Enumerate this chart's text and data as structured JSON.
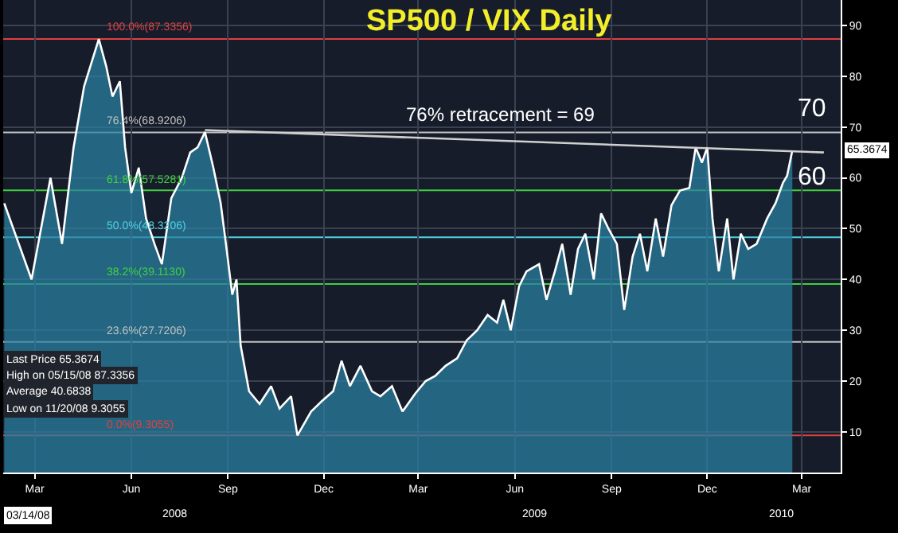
{
  "chart_data": {
    "type": "area",
    "title": "SP500 / VIX Daily",
    "x": [
      "2008-02-15",
      "2008-03-12",
      "2008-03-30",
      "2008-04-10",
      "2008-04-21",
      "2008-05-01",
      "2008-05-10",
      "2008-05-15",
      "2008-05-22",
      "2008-05-28",
      "2008-06-04",
      "2008-06-09",
      "2008-06-15",
      "2008-06-22",
      "2008-06-29",
      "2008-07-07",
      "2008-07-14",
      "2008-07-23",
      "2008-08-02",
      "2008-08-10",
      "2008-08-17",
      "2008-08-24",
      "2008-09-01",
      "2008-09-08",
      "2008-09-13",
      "2008-09-19",
      "2008-09-23",
      "2008-09-27",
      "2008-10-05",
      "2008-10-15",
      "2008-10-26",
      "2008-11-03",
      "2008-11-14",
      "2008-11-20",
      "2008-12-03",
      "2008-12-13",
      "2008-12-24",
      "2009-01-01",
      "2009-01-09",
      "2009-01-19",
      "2009-01-30",
      "2009-02-07",
      "2009-02-18",
      "2009-02-28",
      "2009-03-12",
      "2009-03-22",
      "2009-03-31",
      "2009-04-10",
      "2009-04-21",
      "2009-04-30",
      "2009-05-10",
      "2009-05-20",
      "2009-05-29",
      "2009-06-04",
      "2009-06-11",
      "2009-06-19",
      "2009-06-26",
      "2009-07-08",
      "2009-07-15",
      "2009-07-23",
      "2009-07-30",
      "2009-08-07",
      "2009-08-14",
      "2009-08-21",
      "2009-08-29",
      "2009-09-05",
      "2009-09-12",
      "2009-09-20",
      "2009-09-27",
      "2009-10-05",
      "2009-10-12",
      "2009-10-19",
      "2009-10-27",
      "2009-11-03",
      "2009-11-11",
      "2009-11-19",
      "2009-11-28",
      "2009-12-04",
      "2009-12-10",
      "2009-12-15",
      "2009-12-20",
      "2009-12-26",
      "2010-01-03",
      "2010-01-09",
      "2010-01-16",
      "2010-01-23",
      "2010-01-31",
      "2010-02-10",
      "2010-02-18",
      "2010-02-25",
      "2010-03-01",
      "2010-03-06"
    ],
    "series": [
      {
        "color": "#2a7fa0",
        "values": [
          55,
          40,
          60,
          47,
          66,
          78,
          84,
          87.3,
          82,
          76,
          79,
          66,
          57,
          62,
          52,
          47,
          43,
          56,
          60,
          65,
          66,
          69,
          62,
          55,
          47,
          37,
          40,
          27,
          18,
          15.5,
          19,
          14.6,
          17,
          9.3,
          14,
          16,
          18,
          24,
          19,
          23,
          18,
          17,
          19,
          14,
          17.5,
          20,
          21,
          23,
          24.5,
          28,
          30,
          33,
          31.5,
          36,
          30,
          38.7,
          41.6,
          43,
          36,
          41.6,
          47,
          37,
          46,
          49,
          40,
          53,
          50,
          47,
          34,
          44.5,
          49,
          41.6,
          52,
          44.5,
          54.6,
          57.5,
          58,
          66,
          63,
          66,
          52,
          41.6,
          52,
          40,
          49,
          46,
          47,
          52,
          55,
          59,
          60.4,
          65.4
        ]
      },
      {
        "type": "line",
        "color": "#d0d0d0",
        "x": [
          "2008-08-24",
          "2010-04-05"
        ],
        "values": [
          69.4,
          65
        ]
      }
    ],
    "xlim": [
      "2008-02-14",
      "2010-04-21"
    ],
    "xticks": [
      {
        "value": "2008-03-15",
        "label": "Mar"
      },
      {
        "value": "2008-06-15",
        "label": "Jun"
      },
      {
        "value": "2008-09-15",
        "label": "Sep"
      },
      {
        "value": "2008-12-15",
        "label": "Dec"
      },
      {
        "value": "2009-03-15",
        "label": "Mar"
      },
      {
        "value": "2009-06-15",
        "label": "Jun"
      },
      {
        "value": "2009-09-15",
        "label": "Sep"
      },
      {
        "value": "2009-12-15",
        "label": "Dec"
      },
      {
        "value": "2010-03-15",
        "label": "Mar"
      }
    ],
    "ylim": [
      2,
      95
    ],
    "yticks": [
      10,
      20,
      30,
      40,
      50,
      60,
      70,
      80,
      90
    ],
    "grid": true,
    "ref_lines": [
      {
        "axis": "y",
        "value": 87.3356,
        "label": "100.0%(87.3356)",
        "color": "#e04040"
      },
      {
        "axis": "y",
        "value": 68.9206,
        "label": "76.4%(68.9206)",
        "color": "#c0c0c0"
      },
      {
        "axis": "y",
        "value": 57.5281,
        "label": "61.8%(57.5281)",
        "color": "#40d040"
      },
      {
        "axis": "y",
        "value": 48.3206,
        "label": "50.0%(48.3206)",
        "color": "#50d0e0"
      },
      {
        "axis": "y",
        "value": 39.113,
        "label": "38.2%(39.1130)",
        "color": "#40d040"
      },
      {
        "axis": "y",
        "value": 27.7206,
        "label": "23.6%(27.7206)",
        "color": "#c0c0c0"
      },
      {
        "axis": "y",
        "value": 9.3055,
        "label": "0.0%(9.3055)",
        "color": "#e04040"
      }
    ],
    "annotations": [
      {
        "text": "76% retracement = 69",
        "x": "2009-06-01",
        "y": 69.6
      },
      "70",
      "60",
      "65.3674",
      "Last Price 65.3674",
      "High on 05/15/08 87.3356",
      "Average 40.6838",
      "Low on 11/20/08 9.3055",
      "03/14/08",
      "2008",
      "2009",
      "2010"
    ]
  }
}
